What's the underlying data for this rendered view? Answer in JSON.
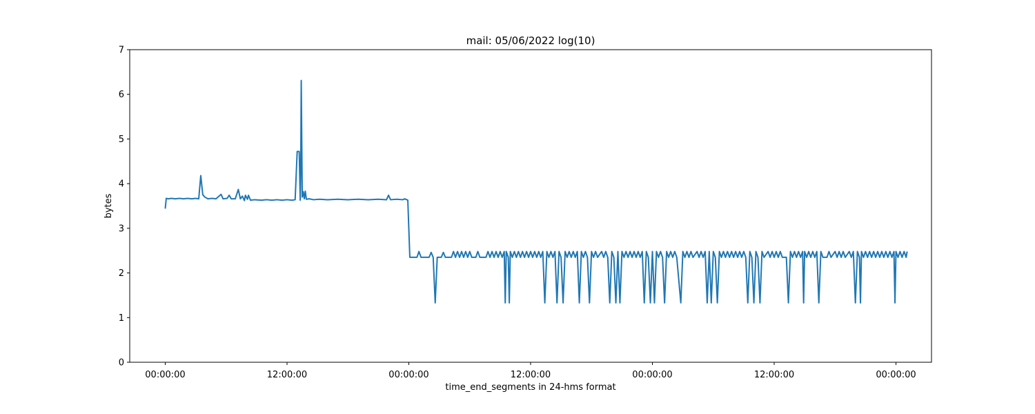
{
  "chart_data": {
    "type": "line",
    "title": "mail: 05/06/2022 log(10)",
    "xlabel": "time_end_segments in 24-hms format",
    "ylabel": "bytes",
    "ylim": [
      0,
      7
    ],
    "yticks": [
      0,
      1,
      2,
      3,
      4,
      5,
      6,
      7
    ],
    "xlim": [
      -3.5,
      75.5
    ],
    "xticks": [
      0,
      12,
      24,
      36,
      48,
      60,
      72
    ],
    "xtick_labels": [
      "00:00:00",
      "12:00:00",
      "00:00:00",
      "00:00:00",
      "12:00:00",
      "00:00:00"
    ],
    "xtick_labels_full": [
      "00:00:00",
      "12:00:00",
      "00:00:00",
      "12:00:00",
      "00:00:00",
      "12:00:00",
      "00:00:00"
    ],
    "grid": false,
    "colors": {
      "line": "#1f77b4",
      "axes": "#000000"
    },
    "series": [
      {
        "points": [
          [
            0.0,
            3.44
          ],
          [
            0.1,
            3.67
          ],
          [
            0.3,
            3.66
          ],
          [
            0.6,
            3.67
          ],
          [
            1.0,
            3.66
          ],
          [
            1.4,
            3.67
          ],
          [
            1.8,
            3.66
          ],
          [
            2.2,
            3.67
          ],
          [
            2.6,
            3.66
          ],
          [
            3.0,
            3.67
          ],
          [
            3.3,
            3.66
          ],
          [
            3.5,
            4.18
          ],
          [
            3.7,
            3.75
          ],
          [
            3.9,
            3.7
          ],
          [
            4.2,
            3.66
          ],
          [
            4.6,
            3.67
          ],
          [
            5.0,
            3.66
          ],
          [
            5.3,
            3.72
          ],
          [
            5.5,
            3.76
          ],
          [
            5.7,
            3.66
          ],
          [
            6.1,
            3.67
          ],
          [
            6.3,
            3.74
          ],
          [
            6.5,
            3.66
          ],
          [
            6.9,
            3.66
          ],
          [
            7.2,
            3.87
          ],
          [
            7.4,
            3.66
          ],
          [
            7.6,
            3.72
          ],
          [
            7.8,
            3.62
          ],
          [
            7.9,
            3.74
          ],
          [
            8.1,
            3.65
          ],
          [
            8.2,
            3.74
          ],
          [
            8.4,
            3.63
          ],
          [
            8.8,
            3.64
          ],
          [
            9.5,
            3.63
          ],
          [
            10.0,
            3.64
          ],
          [
            10.5,
            3.63
          ],
          [
            11.0,
            3.64
          ],
          [
            11.5,
            3.63
          ],
          [
            12.0,
            3.64
          ],
          [
            12.5,
            3.63
          ],
          [
            12.8,
            3.64
          ],
          [
            13.0,
            4.72
          ],
          [
            13.2,
            4.72
          ],
          [
            13.3,
            3.63
          ],
          [
            13.35,
            4.3
          ],
          [
            13.4,
            6.31
          ],
          [
            13.5,
            3.7
          ],
          [
            13.6,
            3.82
          ],
          [
            13.7,
            3.66
          ],
          [
            13.8,
            3.83
          ],
          [
            13.9,
            3.65
          ],
          [
            14.2,
            3.66
          ],
          [
            14.6,
            3.64
          ],
          [
            15.2,
            3.65
          ],
          [
            16.0,
            3.64
          ],
          [
            17.0,
            3.65
          ],
          [
            18.0,
            3.64
          ],
          [
            19.0,
            3.65
          ],
          [
            20.0,
            3.64
          ],
          [
            21.0,
            3.65
          ],
          [
            21.8,
            3.64
          ],
          [
            22.0,
            3.74
          ],
          [
            22.2,
            3.64
          ],
          [
            22.8,
            3.65
          ],
          [
            23.4,
            3.64
          ],
          [
            23.6,
            3.66
          ],
          [
            23.9,
            3.63
          ],
          [
            24.1,
            2.35
          ],
          [
            24.8,
            2.35
          ],
          [
            25.0,
            2.48
          ],
          [
            25.2,
            2.35
          ],
          [
            26.0,
            2.35
          ],
          [
            26.2,
            2.46
          ],
          [
            26.4,
            2.35
          ],
          [
            26.6,
            1.33
          ],
          [
            26.8,
            2.35
          ],
          [
            27.2,
            2.35
          ],
          [
            27.4,
            2.46
          ],
          [
            27.6,
            2.35
          ],
          [
            28.2,
            2.35
          ],
          [
            28.4,
            2.48
          ],
          [
            28.6,
            2.35
          ],
          [
            28.8,
            2.48
          ],
          [
            29.0,
            2.35
          ],
          [
            29.2,
            2.48
          ],
          [
            29.4,
            2.35
          ],
          [
            29.6,
            2.48
          ],
          [
            29.8,
            2.35
          ],
          [
            30.0,
            2.48
          ],
          [
            30.2,
            2.35
          ],
          [
            30.6,
            2.35
          ],
          [
            30.8,
            2.48
          ],
          [
            31.0,
            2.35
          ],
          [
            31.6,
            2.35
          ],
          [
            31.8,
            2.48
          ],
          [
            32.0,
            2.35
          ],
          [
            32.2,
            2.48
          ],
          [
            32.4,
            2.35
          ],
          [
            32.6,
            2.48
          ],
          [
            32.8,
            2.35
          ],
          [
            33.0,
            2.48
          ],
          [
            33.2,
            2.35
          ],
          [
            33.4,
            2.48
          ],
          [
            33.5,
            1.33
          ],
          [
            33.6,
            2.48
          ],
          [
            33.8,
            2.35
          ],
          [
            33.9,
            1.33
          ],
          [
            34.0,
            2.48
          ],
          [
            34.2,
            2.35
          ],
          [
            34.4,
            2.48
          ],
          [
            34.6,
            2.35
          ],
          [
            34.8,
            2.48
          ],
          [
            35.0,
            2.35
          ],
          [
            35.2,
            2.48
          ],
          [
            35.4,
            2.35
          ],
          [
            35.6,
            2.48
          ],
          [
            35.8,
            2.35
          ],
          [
            36.0,
            2.48
          ],
          [
            36.2,
            2.35
          ],
          [
            36.4,
            2.48
          ],
          [
            36.6,
            2.35
          ],
          [
            36.8,
            2.48
          ],
          [
            37.0,
            2.35
          ],
          [
            37.2,
            2.48
          ],
          [
            37.4,
            1.33
          ],
          [
            37.6,
            2.48
          ],
          [
            37.8,
            2.35
          ],
          [
            38.0,
            2.48
          ],
          [
            38.2,
            2.35
          ],
          [
            38.4,
            2.48
          ],
          [
            38.6,
            1.33
          ],
          [
            38.8,
            2.48
          ],
          [
            39.0,
            2.35
          ],
          [
            39.2,
            1.33
          ],
          [
            39.4,
            2.48
          ],
          [
            39.6,
            2.35
          ],
          [
            39.8,
            2.48
          ],
          [
            40.0,
            2.35
          ],
          [
            40.2,
            2.48
          ],
          [
            40.4,
            2.35
          ],
          [
            40.6,
            2.48
          ],
          [
            40.8,
            1.33
          ],
          [
            41.0,
            2.48
          ],
          [
            41.2,
            2.35
          ],
          [
            41.4,
            2.48
          ],
          [
            41.6,
            2.35
          ],
          [
            41.8,
            1.33
          ],
          [
            42.0,
            2.48
          ],
          [
            42.2,
            2.35
          ],
          [
            42.4,
            2.48
          ],
          [
            42.6,
            2.35
          ],
          [
            43.0,
            2.48
          ],
          [
            43.2,
            2.35
          ],
          [
            43.4,
            2.48
          ],
          [
            43.6,
            2.35
          ],
          [
            43.8,
            1.33
          ],
          [
            44.0,
            2.48
          ],
          [
            44.2,
            2.35
          ],
          [
            44.4,
            1.33
          ],
          [
            44.6,
            2.48
          ],
          [
            44.8,
            1.33
          ],
          [
            45.0,
            2.48
          ],
          [
            45.2,
            2.35
          ],
          [
            45.4,
            2.48
          ],
          [
            45.6,
            2.35
          ],
          [
            45.8,
            2.48
          ],
          [
            46.0,
            2.35
          ],
          [
            46.2,
            2.48
          ],
          [
            46.4,
            2.35
          ],
          [
            46.6,
            2.48
          ],
          [
            46.8,
            2.35
          ],
          [
            47.0,
            2.48
          ],
          [
            47.2,
            1.33
          ],
          [
            47.4,
            2.48
          ],
          [
            47.6,
            2.35
          ],
          [
            47.8,
            1.33
          ],
          [
            48.0,
            2.48
          ],
          [
            48.2,
            1.33
          ],
          [
            48.4,
            2.48
          ],
          [
            48.6,
            2.35
          ],
          [
            48.8,
            2.48
          ],
          [
            49.0,
            2.35
          ],
          [
            49.2,
            1.33
          ],
          [
            49.4,
            2.48
          ],
          [
            49.6,
            2.35
          ],
          [
            49.8,
            2.48
          ],
          [
            50.0,
            2.35
          ],
          [
            50.2,
            2.48
          ],
          [
            50.4,
            2.35
          ],
          [
            50.8,
            1.33
          ],
          [
            51.0,
            2.48
          ],
          [
            51.2,
            2.35
          ],
          [
            51.4,
            2.48
          ],
          [
            51.6,
            2.35
          ],
          [
            51.8,
            2.48
          ],
          [
            52.0,
            2.35
          ],
          [
            52.4,
            2.48
          ],
          [
            52.6,
            2.35
          ],
          [
            52.8,
            2.48
          ],
          [
            53.0,
            2.35
          ],
          [
            53.2,
            2.48
          ],
          [
            53.4,
            1.33
          ],
          [
            53.6,
            2.48
          ],
          [
            53.8,
            1.33
          ],
          [
            54.0,
            2.48
          ],
          [
            54.2,
            2.35
          ],
          [
            54.4,
            1.33
          ],
          [
            54.6,
            2.48
          ],
          [
            54.8,
            2.35
          ],
          [
            55.0,
            2.48
          ],
          [
            55.2,
            2.35
          ],
          [
            55.4,
            2.48
          ],
          [
            55.6,
            2.35
          ],
          [
            55.8,
            2.48
          ],
          [
            56.0,
            2.35
          ],
          [
            56.2,
            2.48
          ],
          [
            56.4,
            2.35
          ],
          [
            56.6,
            2.48
          ],
          [
            56.8,
            2.35
          ],
          [
            57.0,
            2.48
          ],
          [
            57.2,
            2.35
          ],
          [
            57.4,
            1.33
          ],
          [
            57.6,
            2.48
          ],
          [
            57.8,
            2.35
          ],
          [
            58.0,
            1.33
          ],
          [
            58.2,
            2.48
          ],
          [
            58.4,
            2.35
          ],
          [
            58.6,
            1.33
          ],
          [
            58.8,
            2.48
          ],
          [
            59.0,
            2.35
          ],
          [
            59.4,
            2.48
          ],
          [
            59.6,
            2.35
          ],
          [
            59.8,
            2.48
          ],
          [
            60.0,
            2.35
          ],
          [
            60.2,
            2.48
          ],
          [
            60.4,
            2.35
          ],
          [
            60.6,
            2.48
          ],
          [
            60.8,
            2.35
          ],
          [
            61.2,
            2.35
          ],
          [
            61.4,
            1.33
          ],
          [
            61.6,
            2.48
          ],
          [
            61.8,
            2.35
          ],
          [
            62.0,
            2.48
          ],
          [
            62.2,
            2.35
          ],
          [
            62.4,
            2.48
          ],
          [
            62.6,
            2.35
          ],
          [
            62.8,
            2.48
          ],
          [
            62.9,
            1.33
          ],
          [
            63.0,
            2.48
          ],
          [
            63.2,
            2.35
          ],
          [
            63.4,
            2.48
          ],
          [
            63.6,
            2.35
          ],
          [
            63.8,
            2.48
          ],
          [
            64.0,
            2.35
          ],
          [
            64.2,
            2.48
          ],
          [
            64.4,
            1.33
          ],
          [
            64.6,
            2.48
          ],
          [
            64.8,
            2.35
          ],
          [
            65.2,
            2.35
          ],
          [
            65.4,
            2.48
          ],
          [
            65.6,
            2.35
          ],
          [
            66.0,
            2.48
          ],
          [
            66.2,
            2.35
          ],
          [
            66.4,
            2.48
          ],
          [
            66.6,
            2.35
          ],
          [
            66.8,
            2.48
          ],
          [
            67.0,
            2.35
          ],
          [
            67.4,
            2.48
          ],
          [
            67.6,
            2.35
          ],
          [
            67.8,
            2.48
          ],
          [
            68.0,
            1.33
          ],
          [
            68.2,
            2.48
          ],
          [
            68.4,
            2.35
          ],
          [
            68.5,
            1.33
          ],
          [
            68.6,
            2.48
          ],
          [
            68.8,
            2.35
          ],
          [
            69.0,
            2.48
          ],
          [
            69.2,
            2.35
          ],
          [
            69.4,
            2.48
          ],
          [
            69.6,
            2.35
          ],
          [
            69.8,
            2.48
          ],
          [
            70.0,
            2.35
          ],
          [
            70.2,
            2.48
          ],
          [
            70.4,
            2.35
          ],
          [
            70.6,
            2.48
          ],
          [
            70.8,
            2.35
          ],
          [
            71.0,
            2.48
          ],
          [
            71.2,
            2.35
          ],
          [
            71.4,
            2.48
          ],
          [
            71.6,
            2.35
          ],
          [
            71.8,
            2.48
          ],
          [
            71.9,
            1.33
          ],
          [
            72.0,
            2.48
          ],
          [
            72.2,
            2.35
          ],
          [
            72.4,
            2.48
          ],
          [
            72.6,
            2.35
          ],
          [
            72.8,
            2.48
          ],
          [
            73.0,
            2.35
          ],
          [
            73.1,
            2.48
          ]
        ]
      }
    ]
  }
}
